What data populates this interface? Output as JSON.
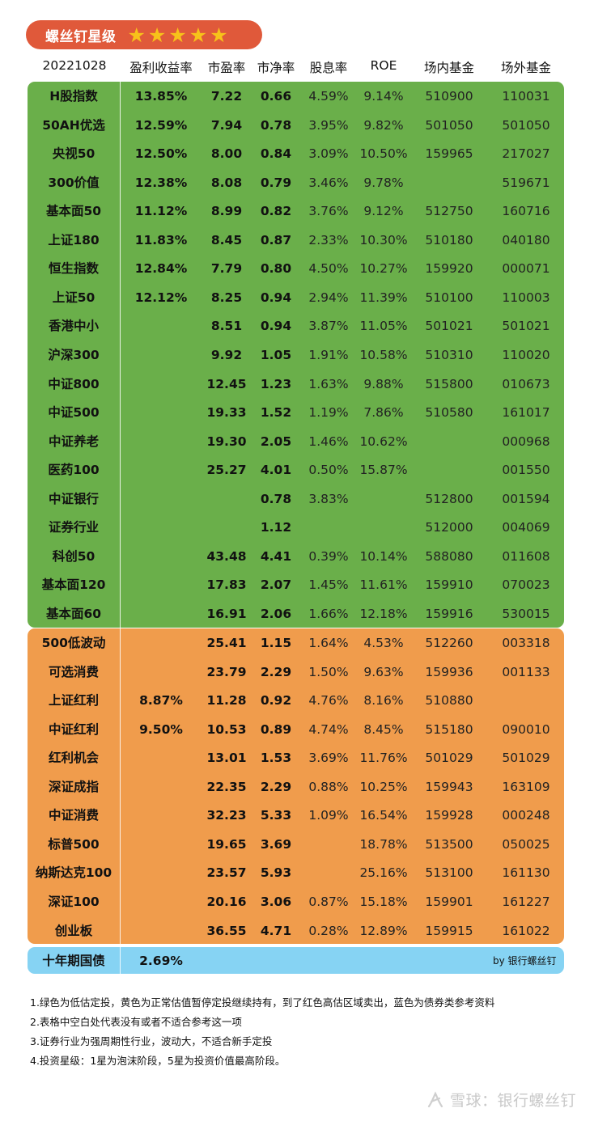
{
  "title": "螺丝钉星级",
  "stars": "★★★★★",
  "rating": 5,
  "header": [
    "20221028",
    "盈利收益率",
    "市盈率",
    "市净率",
    "股息率",
    "ROE",
    "场内基金",
    "场外基金"
  ],
  "green_rows": [
    [
      "H股指数",
      "13.85%",
      "7.22",
      "0.66",
      "4.59%",
      "9.14%",
      "510900",
      "110031"
    ],
    [
      "50AH优选",
      "12.59%",
      "7.94",
      "0.78",
      "3.95%",
      "9.82%",
      "501050",
      "501050"
    ],
    [
      "央视50",
      "12.50%",
      "8.00",
      "0.84",
      "3.09%",
      "10.50%",
      "159965",
      "217027"
    ],
    [
      "300价值",
      "12.38%",
      "8.08",
      "0.79",
      "3.46%",
      "9.78%",
      "",
      "519671"
    ],
    [
      "基本面50",
      "11.12%",
      "8.99",
      "0.82",
      "3.76%",
      "9.12%",
      "512750",
      "160716"
    ],
    [
      "上证180",
      "11.83%",
      "8.45",
      "0.87",
      "2.33%",
      "10.30%",
      "510180",
      "040180"
    ],
    [
      "恒生指数",
      "12.84%",
      "7.79",
      "0.80",
      "4.50%",
      "10.27%",
      "159920",
      "000071"
    ],
    [
      "上证50",
      "12.12%",
      "8.25",
      "0.94",
      "2.94%",
      "11.39%",
      "510100",
      "110003"
    ],
    [
      "香港中小",
      "",
      "8.51",
      "0.94",
      "3.87%",
      "11.05%",
      "501021",
      "501021"
    ],
    [
      "沪深300",
      "",
      "9.92",
      "1.05",
      "1.91%",
      "10.58%",
      "510310",
      "110020"
    ],
    [
      "中证800",
      "",
      "12.45",
      "1.23",
      "1.63%",
      "9.88%",
      "515800",
      "010673"
    ],
    [
      "中证500",
      "",
      "19.33",
      "1.52",
      "1.19%",
      "7.86%",
      "510580",
      "161017"
    ],
    [
      "中证养老",
      "",
      "19.30",
      "2.05",
      "1.46%",
      "10.62%",
      "",
      "000968"
    ],
    [
      "医药100",
      "",
      "25.27",
      "4.01",
      "0.50%",
      "15.87%",
      "",
      "001550"
    ],
    [
      "中证银行",
      "",
      "",
      "0.78",
      "3.83%",
      "",
      "512800",
      "001594"
    ],
    [
      "证券行业",
      "",
      "",
      "1.12",
      "",
      "",
      "512000",
      "004069"
    ],
    [
      "科创50",
      "",
      "43.48",
      "4.41",
      "0.39%",
      "10.14%",
      "588080",
      "011608"
    ],
    [
      "基本面120",
      "",
      "17.83",
      "2.07",
      "1.45%",
      "11.61%",
      "159910",
      "070023"
    ],
    [
      "基本面60",
      "",
      "16.91",
      "2.06",
      "1.66%",
      "12.18%",
      "159916",
      "530015"
    ]
  ],
  "orange_rows": [
    [
      "500低波动",
      "",
      "25.41",
      "1.15",
      "1.64%",
      "4.53%",
      "512260",
      "003318"
    ],
    [
      "可选消费",
      "",
      "23.79",
      "2.29",
      "1.50%",
      "9.63%",
      "159936",
      "001133"
    ],
    [
      "上证红利",
      "8.87%",
      "11.28",
      "0.92",
      "4.76%",
      "8.16%",
      "510880",
      ""
    ],
    [
      "中证红利",
      "9.50%",
      "10.53",
      "0.89",
      "4.74%",
      "8.45%",
      "515180",
      "090010"
    ],
    [
      "红利机会",
      "",
      "13.01",
      "1.53",
      "3.69%",
      "11.76%",
      "501029",
      "501029"
    ],
    [
      "深证成指",
      "",
      "22.35",
      "2.29",
      "0.88%",
      "10.25%",
      "159943",
      "163109"
    ],
    [
      "中证消费",
      "",
      "32.23",
      "5.33",
      "1.09%",
      "16.54%",
      "159928",
      "000248"
    ],
    [
      "标普500",
      "",
      "19.65",
      "3.69",
      "",
      "18.78%",
      "513500",
      "050025"
    ],
    [
      "纳斯达克100",
      "",
      "23.57",
      "5.93",
      "",
      "25.16%",
      "513100",
      "161130"
    ],
    [
      "深证100",
      "",
      "20.16",
      "3.06",
      "0.87%",
      "15.18%",
      "159901",
      "161227"
    ],
    [
      "创业板",
      "",
      "36.55",
      "4.71",
      "0.28%",
      "12.89%",
      "159915",
      "161022"
    ]
  ],
  "bond_row": [
    "十年期国债",
    "2.69%"
  ],
  "credit": "by 银行螺丝钉",
  "notes": [
    "1.绿色为低估定投，黄色为正常估值暂停定投继续持有，到了红色高估区域卖出，蓝色为债券类参考资料",
    "2.表格中空白处代表没有或者不适合参考这一项",
    "3.证券行业为强周期性行业，波动大，不适合新手定投",
    "4.投资星级：1星为泡沫阶段，5星为投资价值最高阶段。"
  ],
  "watermark": "雪球：银行螺丝钉",
  "colors": {
    "title_bg": "#e0593a",
    "star": "#f7c21a",
    "green": "#6aaf4a",
    "orange": "#f09c4c",
    "blue": "#86d3f3"
  }
}
